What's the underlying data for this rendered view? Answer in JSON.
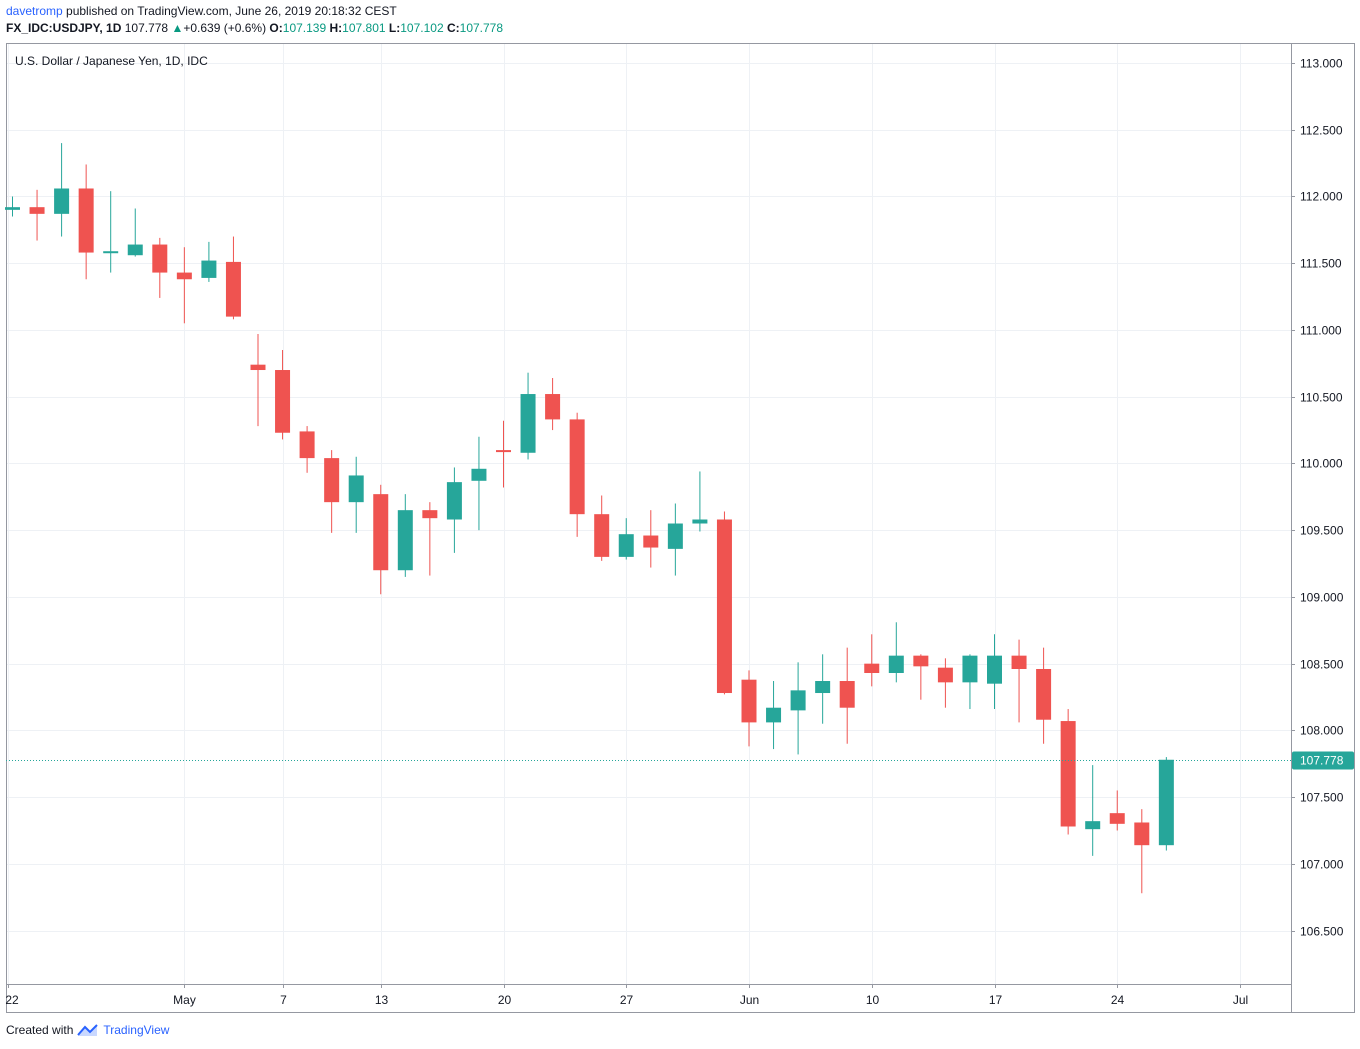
{
  "header": {
    "author": "davetromp",
    "published_text": " published on TradingView.com, June 26, 2019 20:18:32 CEST",
    "symbol": "FX_IDC:USDJPY, 1D",
    "last": "107.778",
    "change_arrow": "▲",
    "change": "+0.639 (+0.6%)",
    "o_label": "O:",
    "o_value": "107.139",
    "h_label": "H:",
    "h_value": "107.801",
    "l_label": "L:",
    "l_value": "107.102",
    "c_label": "C:",
    "c_value": "107.778"
  },
  "footer": {
    "created_with": "Created with",
    "brand": "TradingView",
    "icon": "tradingview-logo-icon"
  },
  "colors": {
    "up": "#26a69a",
    "down": "#ef5350",
    "grid": "#eef1f5",
    "axis_text": "#131722",
    "price_line": "#26a69a",
    "price_tag_bg": "#26a69a"
  },
  "chart_data": {
    "type": "candlestick",
    "title": "U.S. Dollar / Japanese Yen, 1D, IDC",
    "ylim": [
      106.1,
      113.15
    ],
    "y_ticks": [
      "113.000",
      "112.500",
      "112.000",
      "111.500",
      "111.000",
      "110.500",
      "110.000",
      "109.500",
      "109.000",
      "108.500",
      "108.000",
      "107.500",
      "107.000",
      "106.500"
    ],
    "x_ticks": [
      {
        "slot": -0.2,
        "label": "22"
      },
      {
        "slot": 7,
        "label": "May"
      },
      {
        "slot": 11,
        "label": "7"
      },
      {
        "slot": 15,
        "label": "13"
      },
      {
        "slot": 20,
        "label": "20"
      },
      {
        "slot": 25,
        "label": "27"
      },
      {
        "slot": 30,
        "label": "Jun"
      },
      {
        "slot": 35,
        "label": "10"
      },
      {
        "slot": 40,
        "label": "17"
      },
      {
        "slot": 45,
        "label": "24"
      },
      {
        "slot": 50,
        "label": "Jul"
      }
    ],
    "grid": true,
    "last_price": 107.778,
    "last_price_label": "107.778",
    "candles": [
      {
        "o": 111.9,
        "h": 112.0,
        "l": 111.85,
        "c": 111.92
      },
      {
        "o": 111.92,
        "h": 112.05,
        "l": 111.67,
        "c": 111.87
      },
      {
        "o": 111.87,
        "h": 112.4,
        "l": 111.7,
        "c": 112.06
      },
      {
        "o": 112.06,
        "h": 112.24,
        "l": 111.38,
        "c": 111.58
      },
      {
        "o": 111.58,
        "h": 112.04,
        "l": 111.43,
        "c": 111.59
      },
      {
        "o": 111.56,
        "h": 111.91,
        "l": 111.55,
        "c": 111.64
      },
      {
        "o": 111.64,
        "h": 111.69,
        "l": 111.24,
        "c": 111.43
      },
      {
        "o": 111.43,
        "h": 111.62,
        "l": 111.05,
        "c": 111.38
      },
      {
        "o": 111.39,
        "h": 111.66,
        "l": 111.36,
        "c": 111.52
      },
      {
        "o": 111.51,
        "h": 111.7,
        "l": 111.08,
        "c": 111.1
      },
      {
        "o": 110.74,
        "h": 110.97,
        "l": 110.28,
        "c": 110.7
      },
      {
        "o": 110.7,
        "h": 110.85,
        "l": 110.18,
        "c": 110.23
      },
      {
        "o": 110.24,
        "h": 110.28,
        "l": 109.93,
        "c": 110.04
      },
      {
        "o": 110.04,
        "h": 110.1,
        "l": 109.48,
        "c": 109.71
      },
      {
        "o": 109.71,
        "h": 110.05,
        "l": 109.48,
        "c": 109.91
      },
      {
        "o": 109.77,
        "h": 109.84,
        "l": 109.02,
        "c": 109.2
      },
      {
        "o": 109.2,
        "h": 109.77,
        "l": 109.15,
        "c": 109.65
      },
      {
        "o": 109.65,
        "h": 109.71,
        "l": 109.16,
        "c": 109.59
      },
      {
        "o": 109.58,
        "h": 109.97,
        "l": 109.33,
        "c": 109.86
      },
      {
        "o": 109.87,
        "h": 110.2,
        "l": 109.5,
        "c": 109.96
      },
      {
        "o": 110.1,
        "h": 110.32,
        "l": 109.82,
        "c": 110.09
      },
      {
        "o": 110.08,
        "h": 110.68,
        "l": 110.03,
        "c": 110.52
      },
      {
        "o": 110.52,
        "h": 110.64,
        "l": 110.25,
        "c": 110.33
      },
      {
        "o": 110.33,
        "h": 110.38,
        "l": 109.45,
        "c": 109.62
      },
      {
        "o": 109.62,
        "h": 109.76,
        "l": 109.27,
        "c": 109.3
      },
      {
        "o": 109.3,
        "h": 109.59,
        "l": 109.28,
        "c": 109.47
      },
      {
        "o": 109.46,
        "h": 109.65,
        "l": 109.22,
        "c": 109.37
      },
      {
        "o": 109.36,
        "h": 109.7,
        "l": 109.16,
        "c": 109.55
      },
      {
        "o": 109.55,
        "h": 109.94,
        "l": 109.49,
        "c": 109.58
      },
      {
        "o": 109.58,
        "h": 109.64,
        "l": 108.27,
        "c": 108.28
      },
      {
        "o": 108.38,
        "h": 108.45,
        "l": 107.88,
        "c": 108.06
      },
      {
        "o": 108.06,
        "h": 108.37,
        "l": 107.86,
        "c": 108.17
      },
      {
        "o": 108.15,
        "h": 108.51,
        "l": 107.82,
        "c": 108.3
      },
      {
        "o": 108.28,
        "h": 108.57,
        "l": 108.05,
        "c": 108.37
      },
      {
        "o": 108.37,
        "h": 108.62,
        "l": 107.9,
        "c": 108.17
      },
      {
        "o": 108.5,
        "h": 108.72,
        "l": 108.33,
        "c": 108.43
      },
      {
        "o": 108.43,
        "h": 108.81,
        "l": 108.36,
        "c": 108.56
      },
      {
        "o": 108.56,
        "h": 108.57,
        "l": 108.23,
        "c": 108.48
      },
      {
        "o": 108.47,
        "h": 108.54,
        "l": 108.17,
        "c": 108.36
      },
      {
        "o": 108.36,
        "h": 108.57,
        "l": 108.16,
        "c": 108.56
      },
      {
        "o": 108.35,
        "h": 108.72,
        "l": 108.16,
        "c": 108.56
      },
      {
        "o": 108.56,
        "h": 108.68,
        "l": 108.06,
        "c": 108.46
      },
      {
        "o": 108.46,
        "h": 108.62,
        "l": 107.9,
        "c": 108.08
      },
      {
        "o": 108.07,
        "h": 108.16,
        "l": 107.22,
        "c": 107.28
      },
      {
        "o": 107.26,
        "h": 107.74,
        "l": 107.06,
        "c": 107.32
      },
      {
        "o": 107.38,
        "h": 107.55,
        "l": 107.25,
        "c": 107.3
      },
      {
        "o": 107.31,
        "h": 107.41,
        "l": 106.78,
        "c": 107.14
      },
      {
        "o": 107.14,
        "h": 107.8,
        "l": 107.1,
        "c": 107.78
      }
    ]
  }
}
